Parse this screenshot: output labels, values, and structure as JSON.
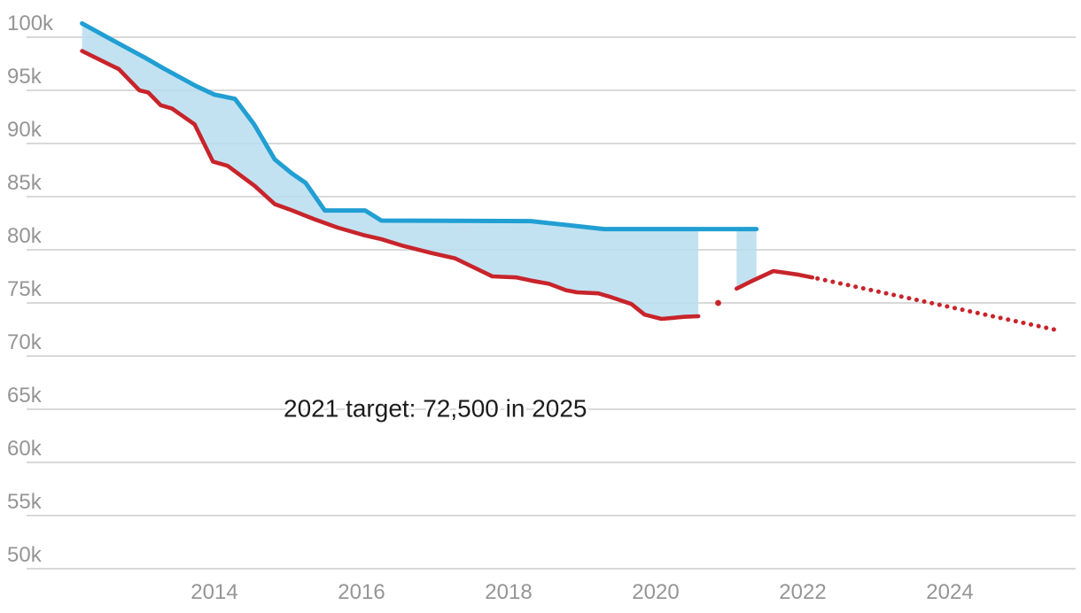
{
  "chart_data": {
    "type": "area",
    "title": "",
    "annotation": {
      "text": "2021 target: 72,500 in 2025",
      "year": 2014.94,
      "value": 64300
    },
    "x_axis": {
      "ticks": [
        {
          "value": 2014,
          "label": "2014"
        },
        {
          "value": 2016,
          "label": "2016"
        },
        {
          "value": 2018,
          "label": "2018"
        },
        {
          "value": 2020,
          "label": "2020"
        },
        {
          "value": 2022,
          "label": "2022"
        },
        {
          "value": 2024,
          "label": "2024"
        }
      ]
    },
    "y_axis": {
      "ticks": [
        {
          "value": 100000,
          "label": "100k"
        },
        {
          "value": 95000,
          "label": "95k"
        },
        {
          "value": 90000,
          "label": "90k"
        },
        {
          "value": 85000,
          "label": "85k"
        },
        {
          "value": 80000,
          "label": "80k"
        },
        {
          "value": 75000,
          "label": "75k"
        },
        {
          "value": 70000,
          "label": "70k"
        },
        {
          "value": 65000,
          "label": "65k"
        },
        {
          "value": 60000,
          "label": "60k"
        },
        {
          "value": 55000,
          "label": "55k"
        },
        {
          "value": 50000,
          "label": "50k"
        }
      ]
    },
    "series": [
      {
        "name": "upper-line",
        "color_key": "blue",
        "style": "solid",
        "points": [
          [
            2012.2,
            101300
          ],
          [
            2012.7,
            99400
          ],
          [
            2013.05,
            98100
          ],
          [
            2013.3,
            97100
          ],
          [
            2013.75,
            95400
          ],
          [
            2014.0,
            94600
          ],
          [
            2014.28,
            94200
          ],
          [
            2014.54,
            91800
          ],
          [
            2014.82,
            88500
          ],
          [
            2015.05,
            87200
          ],
          [
            2015.24,
            86300
          ],
          [
            2015.5,
            83700
          ],
          [
            2016.05,
            83700
          ],
          [
            2016.27,
            82750
          ],
          [
            2018.3,
            82700
          ],
          [
            2019.3,
            81950
          ],
          [
            2021.37,
            81950
          ]
        ]
      },
      {
        "name": "actual-line",
        "color_key": "red",
        "style": "solid",
        "points": [
          [
            2012.2,
            98700
          ],
          [
            2012.7,
            97000
          ],
          [
            2012.98,
            95000
          ],
          [
            2013.1,
            94800
          ],
          [
            2013.27,
            93600
          ],
          [
            2013.42,
            93300
          ],
          [
            2013.73,
            91800
          ],
          [
            2013.98,
            88300
          ],
          [
            2014.18,
            87900
          ],
          [
            2014.55,
            86000
          ],
          [
            2014.82,
            84300
          ],
          [
            2015.02,
            83800
          ],
          [
            2015.35,
            82900
          ],
          [
            2015.67,
            82100
          ],
          [
            2016.02,
            81400
          ],
          [
            2016.27,
            81000
          ],
          [
            2016.55,
            80400
          ],
          [
            2016.95,
            79700
          ],
          [
            2017.27,
            79200
          ],
          [
            2017.6,
            78100
          ],
          [
            2017.78,
            77500
          ],
          [
            2018.11,
            77400
          ],
          [
            2018.31,
            77100
          ],
          [
            2018.55,
            76800
          ],
          [
            2018.78,
            76200
          ],
          [
            2018.93,
            76000
          ],
          [
            2019.22,
            75900
          ],
          [
            2019.37,
            75600
          ],
          [
            2019.67,
            74900
          ],
          [
            2019.85,
            73900
          ],
          [
            2020.08,
            73500
          ],
          [
            2020.4,
            73700
          ],
          [
            2020.58,
            73750
          ]
        ]
      },
      {
        "name": "actual-isolated-point",
        "color_key": "red",
        "style": "point",
        "points": [
          [
            2020.85,
            75000
          ]
        ]
      },
      {
        "name": "actual-line-resumed",
        "color_key": "red",
        "style": "solid",
        "points": [
          [
            2021.1,
            76350
          ],
          [
            2021.35,
            77200
          ],
          [
            2021.6,
            78000
          ],
          [
            2021.95,
            77650
          ],
          [
            2022.13,
            77400
          ]
        ]
      },
      {
        "name": "projection-dotted",
        "color_key": "red",
        "style": "dotted",
        "points": [
          [
            2022.2,
            77300
          ],
          [
            2025.42,
            72500
          ]
        ]
      }
    ],
    "bands": [
      {
        "name": "gap-band-main",
        "top": [
          [
            2012.2,
            101300
          ],
          [
            2012.7,
            99400
          ],
          [
            2013.05,
            98100
          ],
          [
            2013.3,
            97100
          ],
          [
            2013.75,
            95400
          ],
          [
            2014.0,
            94600
          ],
          [
            2014.28,
            94200
          ],
          [
            2014.54,
            91800
          ],
          [
            2014.82,
            88500
          ],
          [
            2015.05,
            87200
          ],
          [
            2015.24,
            86300
          ],
          [
            2015.5,
            83700
          ],
          [
            2016.05,
            83700
          ],
          [
            2016.27,
            82750
          ],
          [
            2018.3,
            82700
          ],
          [
            2019.3,
            81950
          ],
          [
            2020.58,
            81950
          ]
        ],
        "bottom": [
          [
            2012.2,
            98700
          ],
          [
            2012.7,
            97000
          ],
          [
            2012.98,
            95000
          ],
          [
            2013.1,
            94800
          ],
          [
            2013.27,
            93600
          ],
          [
            2013.42,
            93300
          ],
          [
            2013.73,
            91800
          ],
          [
            2013.98,
            88300
          ],
          [
            2014.18,
            87900
          ],
          [
            2014.55,
            86000
          ],
          [
            2014.82,
            84300
          ],
          [
            2015.02,
            83800
          ],
          [
            2015.35,
            82900
          ],
          [
            2015.67,
            82100
          ],
          [
            2016.02,
            81400
          ],
          [
            2016.27,
            81000
          ],
          [
            2016.55,
            80400
          ],
          [
            2016.95,
            79700
          ],
          [
            2017.27,
            79200
          ],
          [
            2017.6,
            78100
          ],
          [
            2017.78,
            77500
          ],
          [
            2018.11,
            77400
          ],
          [
            2018.31,
            77100
          ],
          [
            2018.55,
            76800
          ],
          [
            2018.78,
            76200
          ],
          [
            2018.93,
            76000
          ],
          [
            2019.22,
            75900
          ],
          [
            2019.37,
            75600
          ],
          [
            2019.67,
            74900
          ],
          [
            2019.85,
            73900
          ],
          [
            2020.08,
            73500
          ],
          [
            2020.4,
            73700
          ],
          [
            2020.58,
            73750
          ]
        ]
      },
      {
        "name": "gap-band-resumed",
        "top": [
          [
            2021.1,
            81950
          ],
          [
            2021.37,
            81950
          ]
        ],
        "bottom": [
          [
            2021.1,
            76350
          ],
          [
            2021.35,
            77200
          ],
          [
            2021.37,
            77250
          ]
        ]
      }
    ],
    "colors": {
      "blue": "#219fd3",
      "red": "#c8242b",
      "fill": "#b9ddee",
      "gridline": "#d9d9d9",
      "axis_label": "#959595",
      "annotation": "#1c1c1c",
      "background": "#ffffff"
    }
  }
}
